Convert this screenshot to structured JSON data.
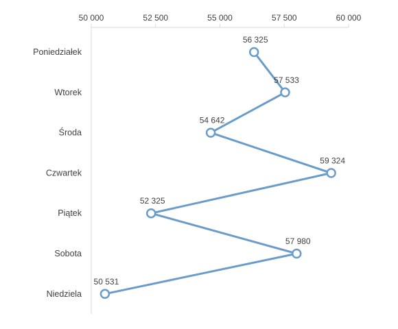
{
  "chart_data": {
    "type": "line",
    "orientation": "horizontal",
    "categories": [
      "Poniedziałek",
      "Wtorek",
      "Środa",
      "Czwartek",
      "Piątek",
      "Sobota",
      "Niedziela"
    ],
    "values": [
      56325,
      57533,
      54642,
      59324,
      52325,
      57980,
      50531
    ],
    "data_labels": [
      "56 325",
      "57 533",
      "54 642",
      "59 324",
      "52 325",
      "57 980",
      "50 531"
    ],
    "xlim": [
      50000,
      60000
    ],
    "x_ticks": [
      50000,
      52500,
      55000,
      57500,
      60000
    ],
    "x_tick_labels": [
      "50 000",
      "52 500",
      "55 000",
      "57 500",
      "60 000"
    ],
    "x_axis_position": "top",
    "grid": false,
    "legend": "none",
    "colors": {
      "series": "#6a9ccb",
      "marker_fill": "#ffffff",
      "axis": "#d9d9d9",
      "text": "#404040"
    }
  }
}
